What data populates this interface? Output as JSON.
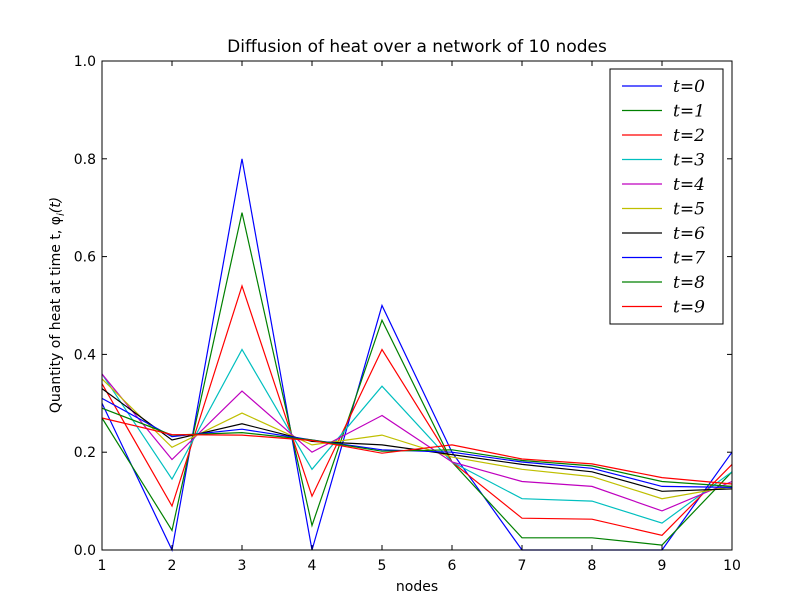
{
  "chart_data": {
    "type": "line",
    "title": "Diffusion of heat over a network of 10 nodes",
    "xlabel": "nodes",
    "ylabel": "Quantity of heat at time t, φ",
    "ylabel_math_sub": "i",
    "ylabel_math_suffix": "(t)",
    "xlim": [
      1,
      10
    ],
    "ylim": [
      0.0,
      1.0
    ],
    "x": [
      1,
      2,
      3,
      4,
      5,
      6,
      7,
      8,
      9,
      10
    ],
    "xticks": [
      "1",
      "2",
      "3",
      "4",
      "5",
      "6",
      "7",
      "8",
      "9",
      "10"
    ],
    "yticks": [
      "0.0",
      "0.2",
      "0.4",
      "0.6",
      "0.8",
      "1.0"
    ],
    "legend_position": "upper-right",
    "grid": false,
    "series": [
      {
        "name": "t=0",
        "color": "#0000ff",
        "values": [
          0.3,
          0.0,
          0.8,
          0.0,
          0.5,
          0.2,
          0.0,
          0.0,
          0.0,
          0.2
        ]
      },
      {
        "name": "t=1",
        "color": "#008000",
        "values": [
          0.27,
          0.04,
          0.69,
          0.05,
          0.47,
          0.18,
          0.025,
          0.025,
          0.01,
          0.16
        ]
      },
      {
        "name": "t=2",
        "color": "#ff0000",
        "values": [
          0.34,
          0.09,
          0.54,
          0.11,
          0.41,
          0.18,
          0.065,
          0.063,
          0.03,
          0.175
        ]
      },
      {
        "name": "t=3",
        "color": "#00bfbf",
        "values": [
          0.36,
          0.145,
          0.41,
          0.165,
          0.335,
          0.18,
          0.105,
          0.1,
          0.055,
          0.16
        ]
      },
      {
        "name": "t=4",
        "color": "#bf00bf",
        "values": [
          0.36,
          0.185,
          0.325,
          0.2,
          0.275,
          0.18,
          0.14,
          0.13,
          0.08,
          0.14
        ]
      },
      {
        "name": "t=5",
        "color": "#bfbf00",
        "values": [
          0.35,
          0.21,
          0.28,
          0.215,
          0.235,
          0.19,
          0.165,
          0.15,
          0.105,
          0.13
        ]
      },
      {
        "name": "t=6",
        "color": "#000000",
        "values": [
          0.33,
          0.225,
          0.258,
          0.222,
          0.215,
          0.195,
          0.175,
          0.16,
          0.12,
          0.125
        ]
      },
      {
        "name": "t=7",
        "color": "#0000ff",
        "values": [
          0.31,
          0.232,
          0.247,
          0.225,
          0.205,
          0.2,
          0.18,
          0.167,
          0.13,
          0.128
        ]
      },
      {
        "name": "t=8",
        "color": "#008000",
        "values": [
          0.29,
          0.235,
          0.24,
          0.225,
          0.202,
          0.205,
          0.183,
          0.172,
          0.14,
          0.13
        ]
      },
      {
        "name": "t=9",
        "color": "#ff0000",
        "values": [
          0.27,
          0.236,
          0.235,
          0.224,
          0.198,
          0.215,
          0.186,
          0.176,
          0.148,
          0.135
        ]
      }
    ]
  }
}
